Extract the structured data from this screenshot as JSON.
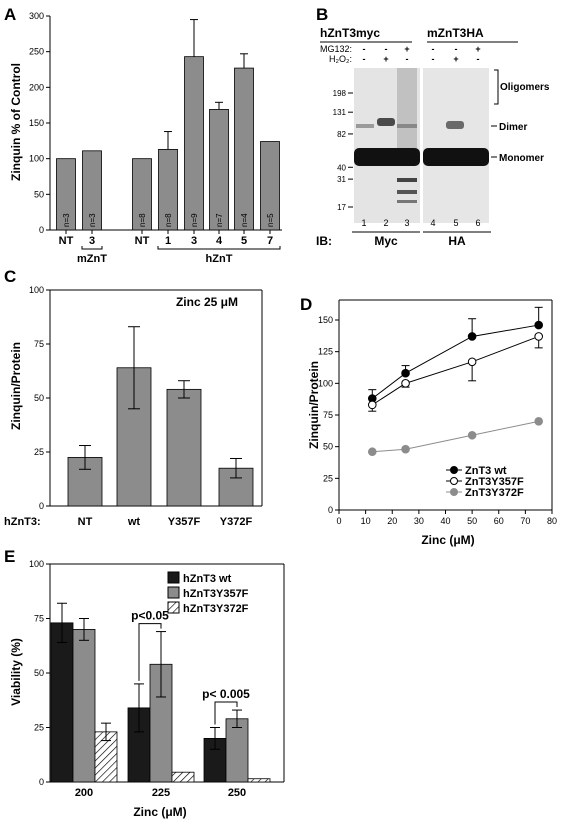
{
  "chart_data": [
    {
      "panel": "A",
      "type": "bar",
      "ylabel": "Zinquin % of Control",
      "ylim": [
        0,
        300
      ],
      "yticks": [
        0,
        50,
        100,
        150,
        200,
        250,
        300
      ],
      "categories": [
        "NT",
        "3",
        "NT",
        "1",
        "3",
        "4",
        "5",
        "7"
      ],
      "values": [
        100,
        111,
        100,
        113,
        243,
        169,
        227,
        124
      ],
      "errors": [
        0,
        0,
        0,
        25,
        52,
        10,
        20,
        0
      ],
      "n_labels": [
        "n=3",
        "n=3",
        "n=8",
        "n=8",
        "n=9",
        "n=7",
        "n=4",
        "n=5"
      ],
      "groups": [
        {
          "label": "mZnT",
          "from": 1,
          "to": 1
        },
        {
          "label": "hZnT",
          "from": 3,
          "to": 7
        }
      ],
      "bar_color": "#8c8c8c"
    },
    {
      "panel": "C",
      "type": "bar",
      "ylabel": "Zinquin/Protein",
      "ylim": [
        0,
        100
      ],
      "yticks": [
        0,
        25,
        50,
        75,
        100
      ],
      "categories": [
        "NT",
        "wt",
        "Y357F",
        "Y372F"
      ],
      "values": [
        22.5,
        64,
        54,
        17.5
      ],
      "errors": [
        5.5,
        19,
        4,
        4.5
      ],
      "row_label": "hZnT3:",
      "annotation": "Zinc 25 μM",
      "bar_color": "#8c8c8c"
    },
    {
      "panel": "D",
      "type": "line",
      "xlabel": "Zinc (μM)",
      "ylabel": "Zinquin/Protein",
      "xlim": [
        0,
        80
      ],
      "ylim": [
        0,
        150
      ],
      "xticks": [
        0,
        10,
        20,
        30,
        40,
        50,
        60,
        70,
        80
      ],
      "yticks": [
        0,
        25,
        50,
        75,
        100,
        125,
        150
      ],
      "x": [
        12.5,
        25,
        50,
        75
      ],
      "series": [
        {
          "name": "ZnT3 wt",
          "values": [
            88,
            108,
            137,
            146
          ],
          "errors": [
            7,
            6,
            14,
            14
          ],
          "marker": "filled",
          "color": "#000000"
        },
        {
          "name": "ZnT3Y357F",
          "values": [
            83,
            100,
            117,
            137
          ],
          "errors": [
            5,
            3,
            15,
            9
          ],
          "marker": "open",
          "color": "#000000"
        },
        {
          "name": "ZnT3Y372F",
          "values": [
            46,
            48,
            59,
            70
          ],
          "errors": [
            0,
            0,
            0,
            0
          ],
          "marker": "filled",
          "color": "#8c8c8c"
        }
      ],
      "legend": "bottom-right"
    },
    {
      "panel": "E",
      "type": "bar",
      "xlabel": "Zinc (μM)",
      "ylabel": "Viability (%)",
      "ylim": [
        0,
        100
      ],
      "yticks": [
        0,
        25,
        50,
        75,
        100
      ],
      "categories": [
        "200",
        "225",
        "250"
      ],
      "series": [
        {
          "name": "hZnT3 wt",
          "values": [
            73,
            34,
            20
          ],
          "errors": [
            9,
            11,
            5
          ],
          "fill": "#1a1a1a"
        },
        {
          "name": "hZnT3Y357F",
          "values": [
            70,
            54,
            29
          ],
          "errors": [
            5,
            15,
            4
          ],
          "fill": "#8c8c8c"
        },
        {
          "name": "hZnT3Y372F",
          "values": [
            23,
            4.5,
            1.5
          ],
          "errors": [
            4,
            0,
            0
          ],
          "fill": "hatch"
        }
      ],
      "annotations": [
        {
          "text": "p<0.05",
          "group": 1
        },
        {
          "text": "p< 0.005",
          "group": 2
        }
      ],
      "legend": "top-right"
    }
  ],
  "blot": {
    "panel": "B",
    "groups": [
      "hZnT3myc",
      "mZnT3HA"
    ],
    "treatments": [
      {
        "name": "MG132:",
        "values": [
          "-",
          "-",
          "+",
          "-",
          "-",
          "+"
        ]
      },
      {
        "name": "H₂O₂:",
        "values": [
          "-",
          "+",
          "-",
          "-",
          "+",
          "-"
        ]
      }
    ],
    "markers": [
      "198",
      "131",
      "82",
      "40",
      "31",
      "17"
    ],
    "marker_kda": [
      198,
      131,
      82,
      40,
      31,
      17
    ],
    "bands": [
      "Oligomers",
      "Dimer",
      "Monomer"
    ],
    "lanes": [
      "1",
      "2",
      "3",
      "4",
      "5",
      "6"
    ],
    "ib_label": "IB:",
    "ib": [
      "Myc",
      "HA"
    ]
  }
}
